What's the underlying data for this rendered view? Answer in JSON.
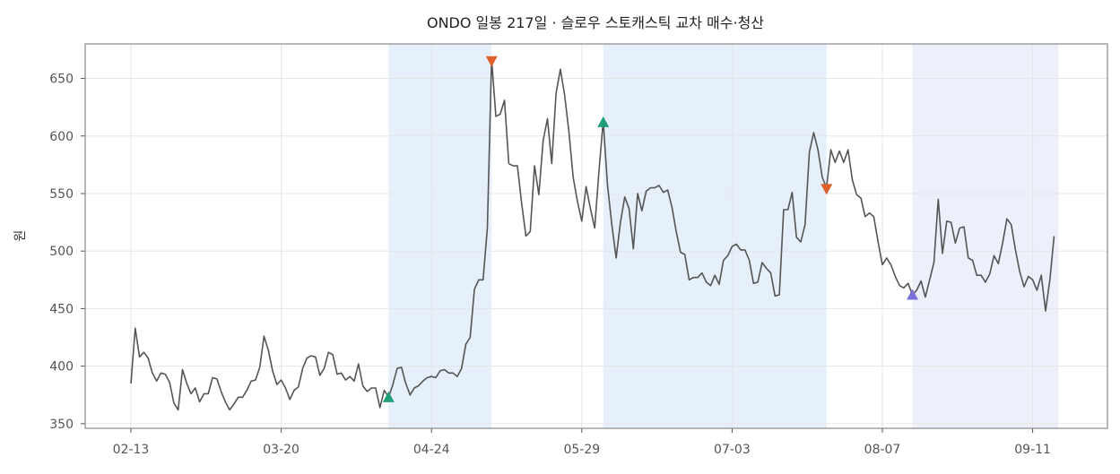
{
  "chart_data": {
    "type": "line",
    "title": "ONDO 일봉 217일 · 슬로우 스토캐스틱 교차 매수·청산",
    "xlabel": "",
    "ylabel": "원",
    "ylim": [
      346,
      680
    ],
    "yticks": [
      350,
      400,
      450,
      500,
      550,
      600,
      650
    ],
    "xtick_labels": [
      "02-13",
      "03-20",
      "04-24",
      "05-29",
      "07-03",
      "08-07",
      "09-11"
    ],
    "xtick_index": [
      0,
      35,
      70,
      105,
      140,
      175,
      210
    ],
    "grid": true,
    "series": [
      {
        "color": "#555555",
        "values": [
          385,
          433,
          408,
          412,
          407,
          394,
          387,
          394,
          393,
          386,
          368,
          362,
          397,
          385,
          376,
          381,
          369,
          376,
          376,
          390,
          389,
          378,
          369,
          362,
          367,
          373,
          373,
          379,
          387,
          388,
          399,
          426,
          414,
          396,
          384,
          388,
          381,
          371,
          379,
          382,
          398,
          407,
          409,
          408,
          392,
          398,
          412,
          410,
          393,
          394,
          388,
          391,
          387,
          402,
          383,
          378,
          381,
          381,
          364,
          379,
          373,
          384,
          398,
          399,
          385,
          375,
          381,
          383,
          387,
          390,
          391,
          390,
          396,
          397,
          394,
          394,
          391,
          398,
          419,
          425,
          467,
          475,
          475,
          520,
          667,
          617,
          619,
          631,
          576,
          574,
          574,
          541,
          513,
          517,
          574,
          549,
          596,
          615,
          576,
          637,
          658,
          636,
          604,
          564,
          543,
          526,
          556,
          537,
          520,
          570,
          613,
          557,
          523,
          494,
          525,
          547,
          537,
          502,
          550,
          535,
          552,
          555,
          555,
          557,
          551,
          553,
          538,
          517,
          499,
          497,
          475,
          477,
          477,
          481,
          473,
          470,
          479,
          471,
          492,
          496,
          504,
          506,
          501,
          501,
          492,
          472,
          473,
          490,
          485,
          481,
          461,
          462,
          536,
          536,
          551,
          512,
          508,
          523,
          586,
          603,
          588,
          564,
          555,
          588,
          577,
          587,
          577,
          588,
          562,
          549,
          546,
          530,
          533,
          530,
          508,
          488,
          494,
          488,
          478,
          470,
          468,
          472,
          462,
          466,
          474,
          460,
          475,
          490,
          545,
          498,
          526,
          525,
          507,
          520,
          521,
          494,
          492,
          479,
          479,
          473,
          480,
          496,
          489,
          507,
          528,
          523,
          501,
          482,
          469,
          478,
          475,
          466,
          479,
          448,
          475,
          513
        ]
      }
    ],
    "buy_signals": [
      {
        "index": 60,
        "value": 373
      },
      {
        "index": 110,
        "value": 612
      }
    ],
    "sell_signals": [
      {
        "index": 84,
        "value": 665
      },
      {
        "index": 162,
        "value": 554
      }
    ],
    "open_signals": [
      {
        "index": 182,
        "value": 462
      }
    ],
    "shaded_ranges": [
      {
        "start": 60,
        "end": 84,
        "color": "#dce9f8"
      },
      {
        "start": 110,
        "end": 162,
        "color": "#dce9f8"
      },
      {
        "start": 182,
        "end": 216,
        "color": "#e6e8f8"
      }
    ],
    "colors": {
      "line": "#555555",
      "buy": "#1f9e7a",
      "sell": "#e0602a",
      "open": "#7b72d9",
      "grid": "#e6e6e6",
      "frame": "#888888"
    }
  }
}
